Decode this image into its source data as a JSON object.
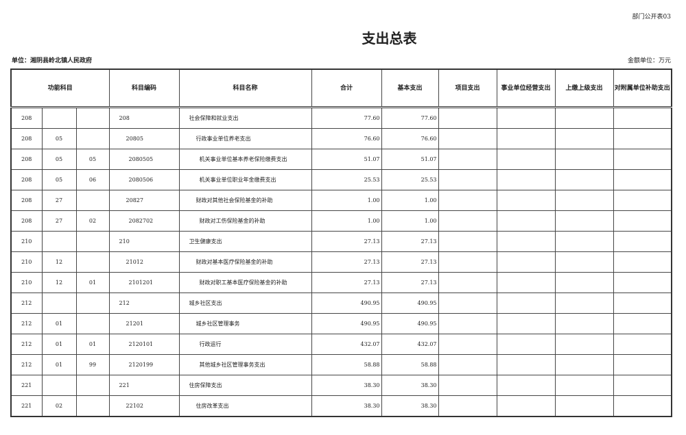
{
  "form_no": "部门公开表03",
  "title": "支出总表",
  "unit": "单位：湘阴县岭北镇人民政府",
  "money_unit": "金额单位：万元",
  "headers": [
    "功能科目",
    "科目编码",
    "科目名称",
    "合计",
    "基本支出",
    "项目支出",
    "事业单位经营支出",
    "上缴上级支出",
    "对附属单位补助支出"
  ],
  "rows": [
    {
      "c1": "208",
      "c2": "",
      "c3": "",
      "code": "208",
      "name": "社会保障和就业支出",
      "level": 1,
      "total": "77.60",
      "basic": "77.60"
    },
    {
      "c1": "208",
      "c2": "05",
      "c3": "",
      "code": "20805",
      "name": "行政事业单位养老支出",
      "level": 2,
      "total": "76.60",
      "basic": "76.60"
    },
    {
      "c1": "208",
      "c2": "05",
      "c3": "05",
      "code": "2080505",
      "name": "机关事业单位基本养老保险缴费支出",
      "level": 3,
      "total": "51.07",
      "basic": "51.07"
    },
    {
      "c1": "208",
      "c2": "05",
      "c3": "06",
      "code": "2080506",
      "name": "机关事业单位职业年金缴费支出",
      "level": 3,
      "total": "25.53",
      "basic": "25.53"
    },
    {
      "c1": "208",
      "c2": "27",
      "c3": "",
      "code": "20827",
      "name": "财政对其他社会保险基金的补助",
      "level": 2,
      "total": "1.00",
      "basic": "1.00"
    },
    {
      "c1": "208",
      "c2": "27",
      "c3": "02",
      "code": "2082702",
      "name": "财政对工伤保险基金的补助",
      "level": 3,
      "total": "1.00",
      "basic": "1.00"
    },
    {
      "c1": "210",
      "c2": "",
      "c3": "",
      "code": "210",
      "name": "卫生健康支出",
      "level": 1,
      "total": "27.13",
      "basic": "27.13"
    },
    {
      "c1": "210",
      "c2": "12",
      "c3": "",
      "code": "21012",
      "name": "财政对基本医疗保险基金的补助",
      "level": 2,
      "total": "27.13",
      "basic": "27.13"
    },
    {
      "c1": "210",
      "c2": "12",
      "c3": "01",
      "code": "2101201",
      "name": "财政对职工基本医疗保险基金的补助",
      "level": 3,
      "total": "27.13",
      "basic": "27.13"
    },
    {
      "c1": "212",
      "c2": "",
      "c3": "",
      "code": "212",
      "name": "城乡社区支出",
      "level": 1,
      "total": "490.95",
      "basic": "490.95"
    },
    {
      "c1": "212",
      "c2": "01",
      "c3": "",
      "code": "21201",
      "name": "城乡社区管理事务",
      "level": 2,
      "total": "490.95",
      "basic": "490.95"
    },
    {
      "c1": "212",
      "c2": "01",
      "c3": "01",
      "code": "2120101",
      "name": "行政运行",
      "level": 3,
      "total": "432.07",
      "basic": "432.07"
    },
    {
      "c1": "212",
      "c2": "01",
      "c3": "99",
      "code": "2120199",
      "name": "其他城乡社区管理事务支出",
      "level": 3,
      "total": "58.88",
      "basic": "58.88"
    },
    {
      "c1": "221",
      "c2": "",
      "c3": "",
      "code": "221",
      "name": "住房保障支出",
      "level": 1,
      "total": "38.30",
      "basic": "38.30"
    },
    {
      "c1": "221",
      "c2": "02",
      "c3": "",
      "code": "22102",
      "name": "住房改革支出",
      "level": 2,
      "total": "38.30",
      "basic": "38.30"
    }
  ]
}
